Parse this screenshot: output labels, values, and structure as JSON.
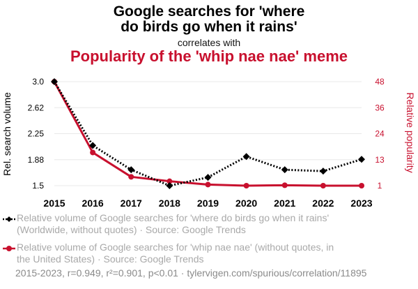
{
  "titles": {
    "line1": "Google searches for 'where",
    "line2": "do birds go when it rains'",
    "correlates": "correlates with",
    "line3": "Popularity of the 'whip nae nae' meme"
  },
  "colors": {
    "series1": "#000000",
    "series2": "#c8102e",
    "grid": "#e8e8e8"
  },
  "chart_data": {
    "type": "line",
    "x": [
      "2015",
      "2016",
      "2017",
      "2018",
      "2019",
      "2020",
      "2021",
      "2022",
      "2023"
    ],
    "series": [
      {
        "name": "Relative volume of Google searches for 'where do birds go when it rains' (Worldwide, without quotes) · Source: Google Trends",
        "axis": "left",
        "style": "dotted",
        "marker": "diamond",
        "values": [
          3.0,
          2.08,
          1.73,
          1.5,
          1.62,
          1.92,
          1.73,
          1.71,
          1.88
        ]
      },
      {
        "name": "Relative volume of Google searches for 'whip nae nae' (without quotes, in the United States) · Source: Google Trends",
        "axis": "right",
        "style": "solid",
        "marker": "circle",
        "values": [
          48,
          16,
          5,
          3,
          1.5,
          1,
          1.2,
          1,
          1
        ]
      }
    ],
    "ylabel_left": "Rel. search volume",
    "ylabel_right": "Relative popularity",
    "yticks_left": [
      "3.0",
      "2.62",
      "2.25",
      "1.88",
      "1.5"
    ],
    "yticks_right": [
      "48",
      "36",
      "24",
      "13",
      "1"
    ],
    "ylim_left": [
      1.5,
      3.0
    ],
    "ylim_right": [
      1,
      48
    ],
    "grid": true
  },
  "legend": [
    "Relative volume of Google searches for 'where do birds go when it rains' (Worldwide, without quotes) · Source: Google Trends",
    "Relative volume of Google searches for 'whip nae nae' (without quotes, in the United States) · Source: Google Trends"
  ],
  "footer": "2015-2023, r=0.949, r²=0.901, p<0.01 · tylervigen.com/spurious/correlation/11895"
}
